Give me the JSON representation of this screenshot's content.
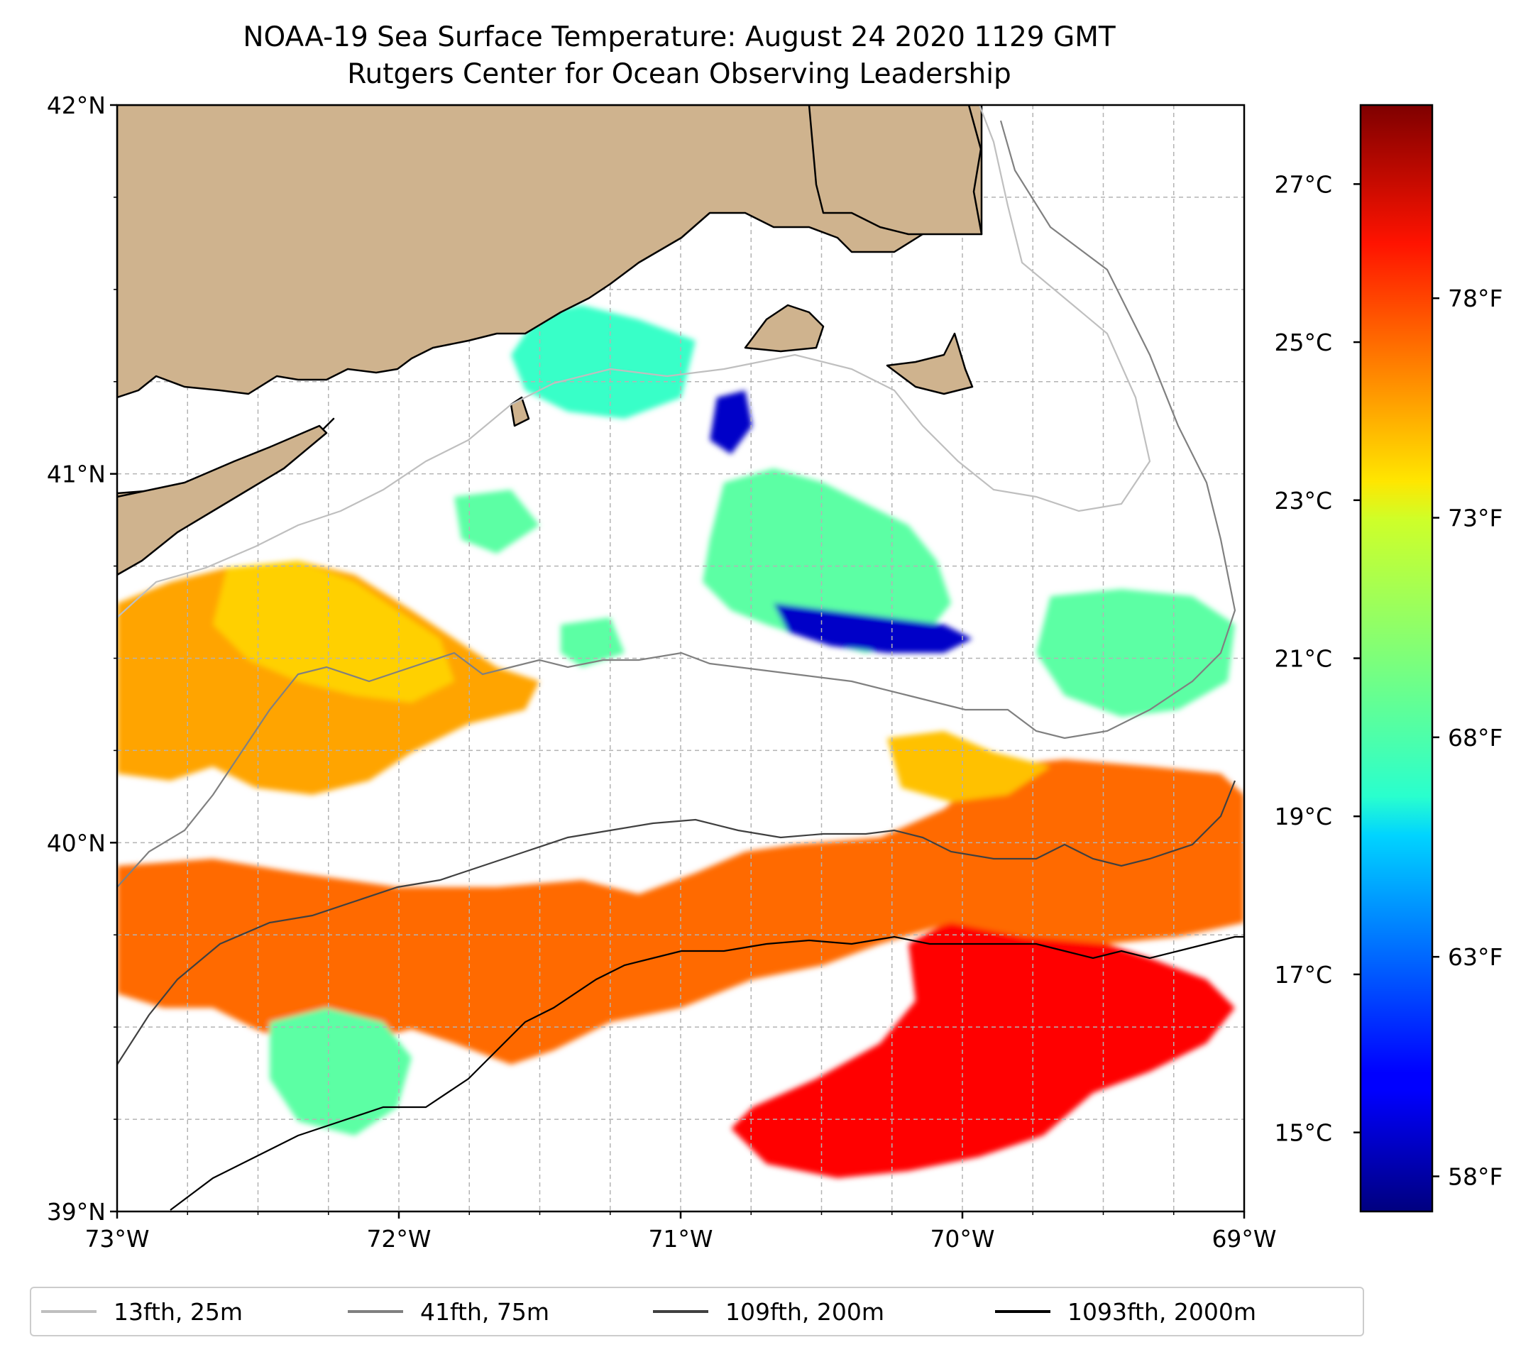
{
  "title": {
    "line1": "NOAA-19 Sea Surface Temperature: August 24 2020 1129 GMT",
    "line2": "Rutgers Center for Ocean Observing Leadership"
  },
  "map": {
    "lon_range": [
      -73,
      -69
    ],
    "lat_range": [
      39,
      42
    ],
    "lon_ticks": [
      {
        "value": -73,
        "label": "73°W"
      },
      {
        "value": -72,
        "label": "72°W"
      },
      {
        "value": -71,
        "label": "71°W"
      },
      {
        "value": -70,
        "label": "70°W"
      },
      {
        "value": -69,
        "label": "69°W"
      }
    ],
    "lat_ticks": [
      {
        "value": 42,
        "label": "42°N"
      },
      {
        "value": 41,
        "label": "41°N"
      },
      {
        "value": 40,
        "label": "40°N"
      },
      {
        "value": 39,
        "label": "39°N"
      }
    ],
    "grid": true,
    "land_color": "#cfb38e",
    "sst_regions": [
      {
        "name": "southeast-warm-core",
        "temp_c": 26.2
      },
      {
        "name": "southern-shelf-band",
        "temp_c": 24.8
      },
      {
        "name": "western-shelf-band",
        "temp_c": 24.0
      },
      {
        "name": "northwest-patch",
        "temp_c": 23.4
      },
      {
        "name": "east-shelf-patch",
        "temp_c": 23.6
      },
      {
        "name": "central-cool-patch",
        "temp_c": 20.5
      },
      {
        "name": "central-cold-core",
        "temp_c": 15.0
      },
      {
        "name": "sound-waters",
        "temp_c": 20.0
      }
    ]
  },
  "colorbar": {
    "colormap": "jet",
    "range_c": [
      14.0,
      28.0
    ],
    "celsius_ticks": [
      {
        "value": 15,
        "label": "15°C"
      },
      {
        "value": 17,
        "label": "17°C"
      },
      {
        "value": 19,
        "label": "19°C"
      },
      {
        "value": 21,
        "label": "21°C"
      },
      {
        "value": 23,
        "label": "23°C"
      },
      {
        "value": 25,
        "label": "25°C"
      },
      {
        "value": 27,
        "label": "27°C"
      }
    ],
    "fahrenheit_ticks": [
      {
        "value": 58,
        "label": "58°F"
      },
      {
        "value": 63,
        "label": "63°F"
      },
      {
        "value": 68,
        "label": "68°F"
      },
      {
        "value": 73,
        "label": "73°F"
      },
      {
        "value": 78,
        "label": "78°F"
      }
    ]
  },
  "legend": [
    {
      "label": "13fth, 25m",
      "color": "#bfbfbf"
    },
    {
      "label": "41fth, 75m",
      "color": "#808080"
    },
    {
      "label": "109fth, 200m",
      "color": "#404040"
    },
    {
      "label": "1093fth, 2000m",
      "color": "#000000"
    }
  ]
}
